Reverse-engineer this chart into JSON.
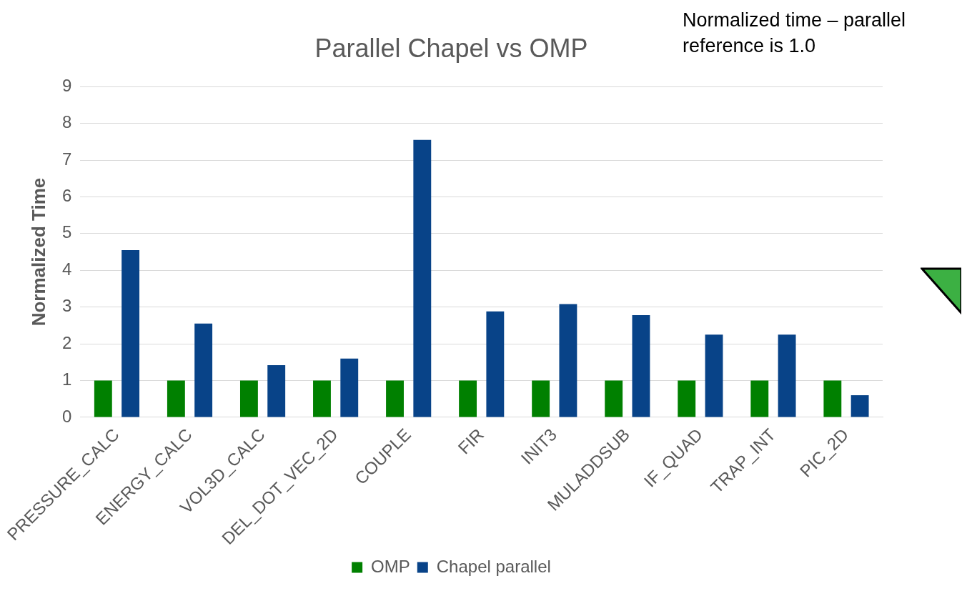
{
  "chart_data": {
    "type": "bar",
    "title": "Parallel Chapel vs OMP",
    "ylabel": "Normalized Time",
    "annotations": [
      "Normalized time – parallel reference is 1.0"
    ],
    "categories": [
      "PRESSURE_CALC",
      "ENERGY_CALC",
      "VOL3D_CALC",
      "DEL_DOT_VEC_2D",
      "COUPLE",
      "FIR",
      "INIT3",
      "MULADDSUB",
      "IF_QUAD",
      "TRAP_INT",
      "PIC_2D"
    ],
    "series": [
      {
        "name": "OMP",
        "color": "#008000",
        "values": [
          1,
          1,
          1,
          1,
          1,
          1,
          1,
          1,
          1,
          1,
          1
        ]
      },
      {
        "name": "Chapel parallel",
        "color": "#084388",
        "values": [
          4.55,
          2.55,
          1.42,
          1.6,
          7.55,
          2.88,
          3.08,
          2.78,
          2.25,
          2.25,
          0.6
        ]
      }
    ],
    "ylim": [
      0,
      9
    ],
    "yticks": [
      0,
      1,
      2,
      3,
      4,
      5,
      6,
      7,
      8,
      9
    ],
    "grid": "y",
    "legend": "bottom"
  }
}
